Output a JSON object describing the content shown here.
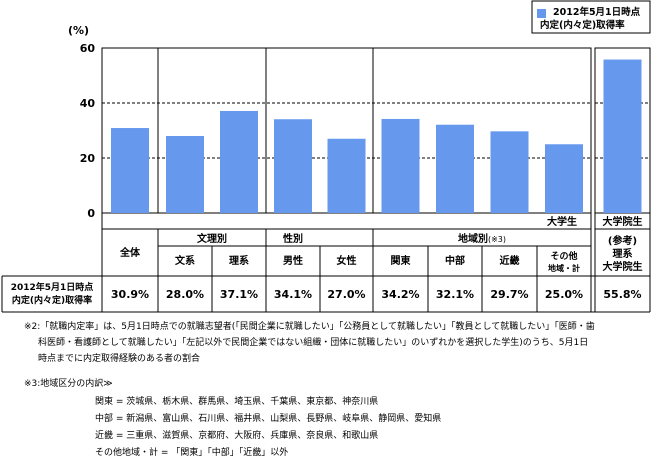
{
  "chart_data": {
    "type": "bar",
    "y_unit": "(%)",
    "ylim": [
      0,
      60
    ],
    "y_ticks": [
      "0",
      "20",
      "40",
      "60"
    ],
    "grid": "dashed lines at 20 and 40",
    "legend": {
      "label_line1": "2012年5月1日時点",
      "label_line2": "内定(内々定)取得率",
      "placement": "top-right"
    },
    "bar_color": "#6699ee",
    "undergrad_label": "大学生",
    "grad_label": "大学院生",
    "groups": {
      "bunri": "文理別",
      "gender": "性別",
      "region": "地域別",
      "region_ref": "(※3)"
    },
    "categories": [
      {
        "label": "全体",
        "value": 30.9,
        "display": "30.9%"
      },
      {
        "label": "文系",
        "value": 28.0,
        "display": "28.0%"
      },
      {
        "label": "理系",
        "value": 37.1,
        "display": "37.1%"
      },
      {
        "label": "男性",
        "value": 34.1,
        "display": "34.1%"
      },
      {
        "label": "女性",
        "value": 27.0,
        "display": "27.0%"
      },
      {
        "label": "関東",
        "value": 34.2,
        "display": "34.2%"
      },
      {
        "label": "中部",
        "value": 32.1,
        "display": "32.1%"
      },
      {
        "label": "近畿",
        "value": 29.7,
        "display": "29.7%"
      },
      {
        "label": "その他地域・計",
        "label_line1": "その他",
        "label_line2": "地域・計",
        "value": 25.0,
        "display": "25.0%"
      },
      {
        "label": "(参考)理系大学院生",
        "label_line1": "(参考)",
        "label_line2": "理系",
        "label_line3": "大学院生",
        "value": 55.8,
        "display": "55.8%"
      }
    ],
    "row_header_line1": "2012年5月1日時点",
    "row_header_line2": "内定(内々定)取得率"
  },
  "notes": {
    "note2_line1": "※2:「就職内定率」は、5月1日時点での就職志望者(「民間企業に就職したい」「公務員として就職したい」「教員として就職したい」「医師・歯",
    "note2_line2": "科医師・看護師として就職したい」「左記以外で民間企業ではない組織・団体に就職したい」のいずれかを選択した学生)のうち、5月1日",
    "note2_line3": "時点までに内定取得経験のある者の割合",
    "note3_title": "※3:地域区分の内訳≫",
    "kanto": "関東 = 茨城県、栃木県、群馬県、埼玉県、千葉県、東京都、神奈川県",
    "chubu": "中部 = 新潟県、富山県、石川県、福井県、山梨県、長野県、岐阜県、静岡県、愛知県",
    "kinki": "近畿 = 三重県、滋賀県、京都府、大阪府、兵庫県、奈良県、和歌山県",
    "other": "その他地域・計 = 「関東」「中部」「近畿」以外"
  }
}
